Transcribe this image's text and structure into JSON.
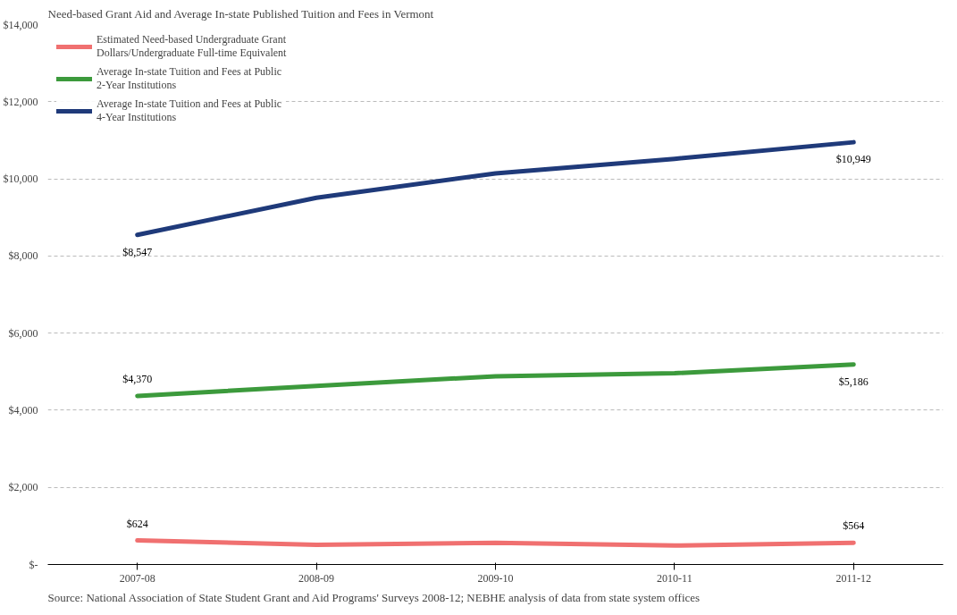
{
  "chart_data": {
    "type": "line",
    "title": "Need-based Grant Aid and Average In-state Published Tuition and Fees in Vermont",
    "categories": [
      "2007-08",
      "2008-09",
      "2009-10",
      "2010-11",
      "2011-12"
    ],
    "series": [
      {
        "name": "Estimated Need-based Undergraduate Grant Dollars/Undergraduate Full-time Equivalent",
        "color": "#f07070",
        "values": [
          624,
          510,
          560,
          490,
          564
        ],
        "value_labels": [
          "$624",
          null,
          null,
          null,
          "$564"
        ]
      },
      {
        "name": "Average In-state Tuition and Fees at Public 2-Year Institutions",
        "color": "#3c9a3c",
        "values": [
          4370,
          4630,
          4880,
          4960,
          5186
        ],
        "value_labels": [
          "$4,370",
          null,
          null,
          null,
          "$5,186"
        ]
      },
      {
        "name": "Average In-state Tuition and Fees at Public 4-Year Institutions",
        "color": "#1f3a7a",
        "values": [
          8547,
          9510,
          10140,
          10520,
          10949
        ],
        "value_labels": [
          "$8,547",
          null,
          null,
          null,
          "$10,949"
        ]
      }
    ],
    "ylim": [
      0,
      14000
    ],
    "yticks": [
      {
        "value": 0,
        "label": "$-"
      },
      {
        "value": 2000,
        "label": "$2,000"
      },
      {
        "value": 4000,
        "label": "$4,000"
      },
      {
        "value": 6000,
        "label": "$6,000"
      },
      {
        "value": 8000,
        "label": "$8,000"
      },
      {
        "value": 10000,
        "label": "$10,000"
      },
      {
        "value": 12000,
        "label": "$12,000"
      },
      {
        "value": 14000,
        "label": "$14,000"
      }
    ],
    "grid": "y",
    "legend": "top left",
    "line_style": "solid",
    "marker": "none",
    "annotations": [
      "Source: National Association of State Student Grant and Aid Programs' Surveys 2008-12; NEBHE analysis of data from state system offices"
    ]
  }
}
